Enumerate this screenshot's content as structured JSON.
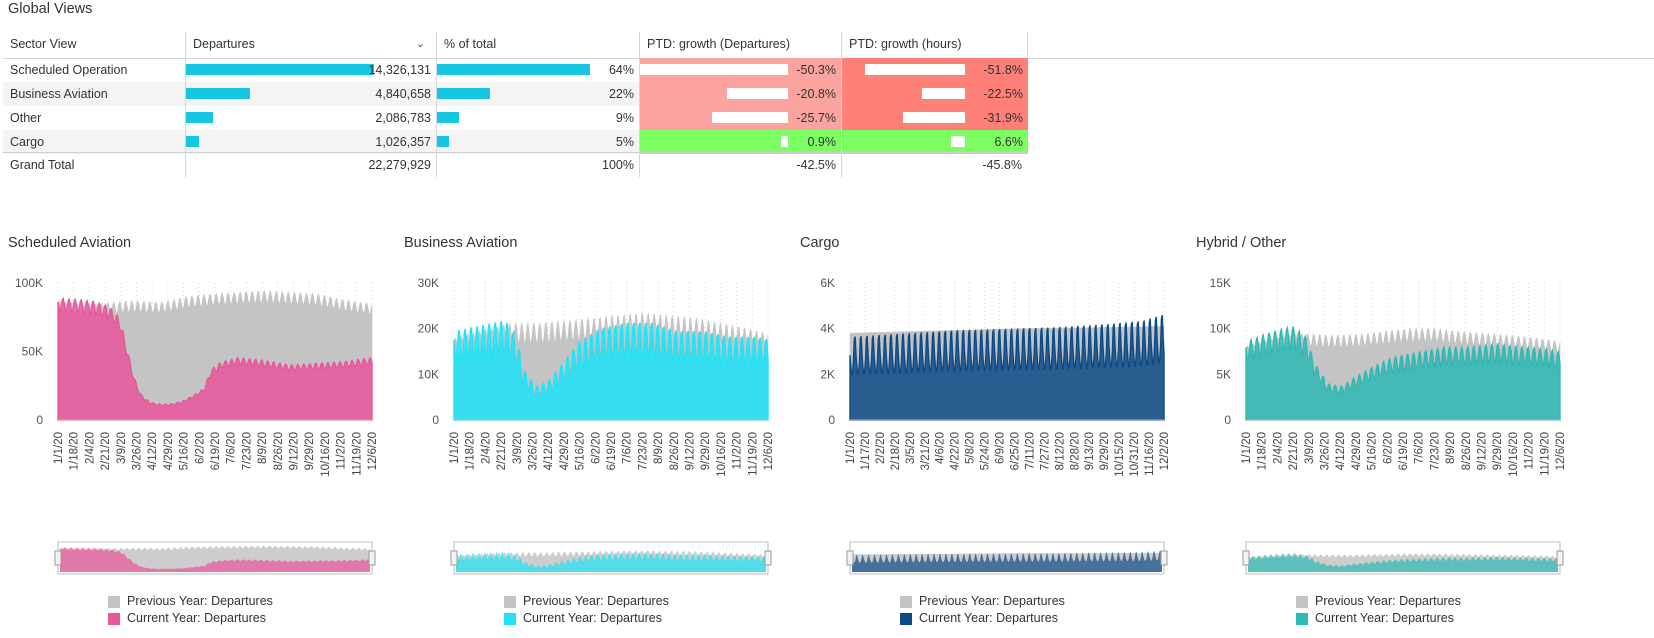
{
  "page_title": "Global Views",
  "table": {
    "headers": {
      "sector": "Sector View",
      "departures": "Departures",
      "pct": "% of total",
      "ptd_dep": "PTD: growth (Departures)",
      "ptd_hours": "PTD: growth (hours)"
    },
    "rows": [
      {
        "label": "Scheduled Operation",
        "departures": "14,326,131",
        "dep_value": 14326131,
        "pct": "64%",
        "pct_value": 64,
        "ptd_dep": "-50.3%",
        "ptd_dep_value": -50.3,
        "ptd_hours": "-51.8%",
        "ptd_hours_value": -51.8
      },
      {
        "label": "Business Aviation",
        "departures": "4,840,658",
        "dep_value": 4840658,
        "pct": "22%",
        "pct_value": 22,
        "ptd_dep": "-20.8%",
        "ptd_dep_value": -20.8,
        "ptd_hours": "-22.5%",
        "ptd_hours_value": -22.5
      },
      {
        "label": "Other",
        "departures": "2,086,783",
        "dep_value": 2086783,
        "pct": "9%",
        "pct_value": 9,
        "ptd_dep": "-25.7%",
        "ptd_dep_value": -25.7,
        "ptd_hours": "-31.9%",
        "ptd_hours_value": -31.9
      },
      {
        "label": "Cargo",
        "departures": "1,026,357",
        "dep_value": 1026357,
        "pct": "5%",
        "pct_value": 5,
        "ptd_dep": "0.9%",
        "ptd_dep_value": 0.9,
        "ptd_hours": "6.6%",
        "ptd_hours_value": 6.6
      }
    ],
    "total": {
      "label": "Grand Total",
      "departures": "22,279,929",
      "pct": "100%",
      "ptd_dep": "-42.5%",
      "ptd_hours": "-45.8%"
    },
    "colors": {
      "bar": "#16c7e1",
      "neg_light": "#fba39e",
      "neg_strong": "#ff7f79",
      "positive": "#7dff63"
    }
  },
  "chart_data": [
    {
      "type": "area",
      "title": "Scheduled Aviation",
      "yticks": [
        "100K",
        "50K",
        "0"
      ],
      "ylim": [
        0,
        100000
      ],
      "xticks": [
        "1/1/20",
        "1/18/20",
        "2/4/20",
        "2/21/20",
        "3/9/20",
        "3/26/20",
        "4/12/20",
        "4/29/20",
        "5/16/20",
        "6/2/20",
        "6/19/20",
        "7/6/20",
        "7/23/20",
        "8/9/20",
        "8/26/20",
        "9/12/20",
        "9/29/20",
        "10/16/20",
        "11/2/20",
        "11/19/20",
        "12/6/20"
      ],
      "weekly_amp": {
        "prev": 0.05,
        "curr": 0.06
      },
      "series": [
        {
          "name": "Previous Year: Departures",
          "color": "#c4c4c4",
          "points": [
            [
              0,
              83000
            ],
            [
              30,
              80000
            ],
            [
              60,
              82000
            ],
            [
              90,
              83000
            ],
            [
              120,
              82000
            ],
            [
              150,
              86000
            ],
            [
              180,
              88000
            ],
            [
              210,
              89000
            ],
            [
              240,
              90000
            ],
            [
              270,
              89000
            ],
            [
              300,
              88000
            ],
            [
              330,
              84000
            ],
            [
              365,
              81000
            ]
          ]
        },
        {
          "name": "Current Year: Departures",
          "color": "#e8569b",
          "points": [
            [
              0,
              84000
            ],
            [
              40,
              82000
            ],
            [
              60,
              78000
            ],
            [
              72,
              70000
            ],
            [
              80,
              50000
            ],
            [
              88,
              30000
            ],
            [
              96,
              18000
            ],
            [
              105,
              13000
            ],
            [
              115,
              11000
            ],
            [
              130,
              11000
            ],
            [
              145,
              13000
            ],
            [
              160,
              18000
            ],
            [
              170,
              22000
            ],
            [
              178,
              35000
            ],
            [
              190,
              40000
            ],
            [
              210,
              43000
            ],
            [
              240,
              41000
            ],
            [
              270,
              38000
            ],
            [
              300,
              39000
            ],
            [
              330,
              40000
            ],
            [
              365,
              43000
            ]
          ]
        }
      ]
    },
    {
      "type": "area",
      "title": "Business Aviation",
      "yticks": [
        "30K",
        "20K",
        "10K",
        "0"
      ],
      "ylim": [
        0,
        30000
      ],
      "xticks": [
        "1/1/20",
        "1/18/20",
        "2/4/20",
        "2/21/20",
        "3/9/20",
        "3/26/20",
        "4/12/20",
        "4/29/20",
        "5/16/20",
        "6/2/20",
        "6/19/20",
        "7/6/20",
        "7/23/20",
        "8/9/20",
        "8/26/20",
        "9/12/20",
        "9/29/20",
        "10/16/20",
        "11/2/20",
        "11/19/20",
        "12/6/20"
      ],
      "weekly_amp": {
        "prev": 0.12,
        "curr": 0.22
      },
      "series": [
        {
          "name": "Previous Year: Departures",
          "color": "#c4c4c4",
          "points": [
            [
              0,
              16000
            ],
            [
              40,
              18000
            ],
            [
              70,
              19000
            ],
            [
              100,
              19000
            ],
            [
              130,
              19500
            ],
            [
              160,
              20000
            ],
            [
              190,
              20500
            ],
            [
              220,
              21000
            ],
            [
              250,
              20500
            ],
            [
              280,
              20000
            ],
            [
              310,
              19000
            ],
            [
              340,
              18000
            ],
            [
              365,
              17000
            ]
          ]
        },
        {
          "name": "Current Year: Departures",
          "color": "#1fe3f7",
          "points": [
            [
              0,
              16000
            ],
            [
              30,
              17000
            ],
            [
              60,
              18000
            ],
            [
              72,
              15000
            ],
            [
              82,
              9000
            ],
            [
              95,
              6000
            ],
            [
              110,
              7000
            ],
            [
              125,
              10000
            ],
            [
              145,
              14000
            ],
            [
              170,
              16500
            ],
            [
              200,
              17500
            ],
            [
              230,
              17500
            ],
            [
              260,
              16000
            ],
            [
              290,
              16000
            ],
            [
              320,
              15000
            ],
            [
              350,
              15000
            ],
            [
              365,
              14500
            ]
          ]
        }
      ]
    },
    {
      "type": "area",
      "title": "Cargo",
      "yticks": [
        "6K",
        "4K",
        "2K",
        "0"
      ],
      "ylim": [
        0,
        6000
      ],
      "xticks": [
        "1/1/20",
        "1/17/20",
        "2/2/20",
        "2/18/20",
        "3/5/20",
        "3/21/20",
        "4/6/20",
        "4/22/20",
        "5/8/20",
        "5/24/20",
        "6/9/20",
        "6/25/20",
        "7/11/20",
        "7/27/20",
        "8/12/20",
        "8/28/20",
        "9/13/20",
        "9/29/20",
        "10/15/20",
        "10/31/20",
        "11/16/20",
        "12/2/20"
      ],
      "weekly_amp": {
        "prev": 0.0,
        "curr": 0.5
      },
      "series": [
        {
          "name": "Previous Year: Departures",
          "color": "#c4c4c4",
          "points": [
            [
              0,
              3800
            ],
            [
              100,
              3900
            ],
            [
              200,
              4000
            ],
            [
              300,
              4050
            ],
            [
              365,
              4100
            ]
          ]
        },
        {
          "name": "Current Year: Departures",
          "color": "#0e4a86",
          "points": [
            [
              0,
              2600
            ],
            [
              60,
              2700
            ],
            [
              120,
              2800
            ],
            [
              180,
              2850
            ],
            [
              240,
              2900
            ],
            [
              300,
              3000
            ],
            [
              340,
              3100
            ],
            [
              365,
              3300
            ]
          ]
        }
      ]
    },
    {
      "type": "area",
      "title": "Hybrid / Other",
      "yticks": [
        "15K",
        "10K",
        "5K",
        "0"
      ],
      "ylim": [
        0,
        15000
      ],
      "xticks": [
        "1/1/20",
        "1/18/20",
        "2/4/20",
        "2/21/20",
        "3/9/20",
        "3/26/20",
        "4/12/20",
        "4/29/20",
        "5/16/20",
        "6/2/20",
        "6/19/20",
        "7/6/20",
        "7/23/20",
        "8/9/20",
        "8/26/20",
        "9/12/20",
        "9/29/20",
        "10/16/20",
        "11/2/20",
        "11/19/20",
        "12/6/20"
      ],
      "weekly_amp": {
        "prev": 0.08,
        "curr": 0.14
      },
      "series": [
        {
          "name": "Previous Year: Departures",
          "color": "#c4c4c4",
          "points": [
            [
              0,
              7500
            ],
            [
              40,
              8500
            ],
            [
              70,
              8800
            ],
            [
              100,
              8600
            ],
            [
              130,
              8700
            ],
            [
              160,
              9000
            ],
            [
              190,
              9300
            ],
            [
              220,
              9300
            ],
            [
              250,
              9000
            ],
            [
              280,
              8800
            ],
            [
              310,
              8600
            ],
            [
              340,
              8300
            ],
            [
              365,
              8000
            ]
          ]
        },
        {
          "name": "Current Year: Departures",
          "color": "#2db9b4",
          "points": [
            [
              0,
              7500
            ],
            [
              30,
              8500
            ],
            [
              55,
              9000
            ],
            [
              70,
              8000
            ],
            [
              80,
              5500
            ],
            [
              95,
              3500
            ],
            [
              110,
              3200
            ],
            [
              125,
              4000
            ],
            [
              145,
              5000
            ],
            [
              170,
              6000
            ],
            [
              200,
              6500
            ],
            [
              230,
              7000
            ],
            [
              260,
              7000
            ],
            [
              290,
              7300
            ],
            [
              320,
              7000
            ],
            [
              350,
              6800
            ],
            [
              365,
              6500
            ]
          ]
        }
      ]
    }
  ]
}
